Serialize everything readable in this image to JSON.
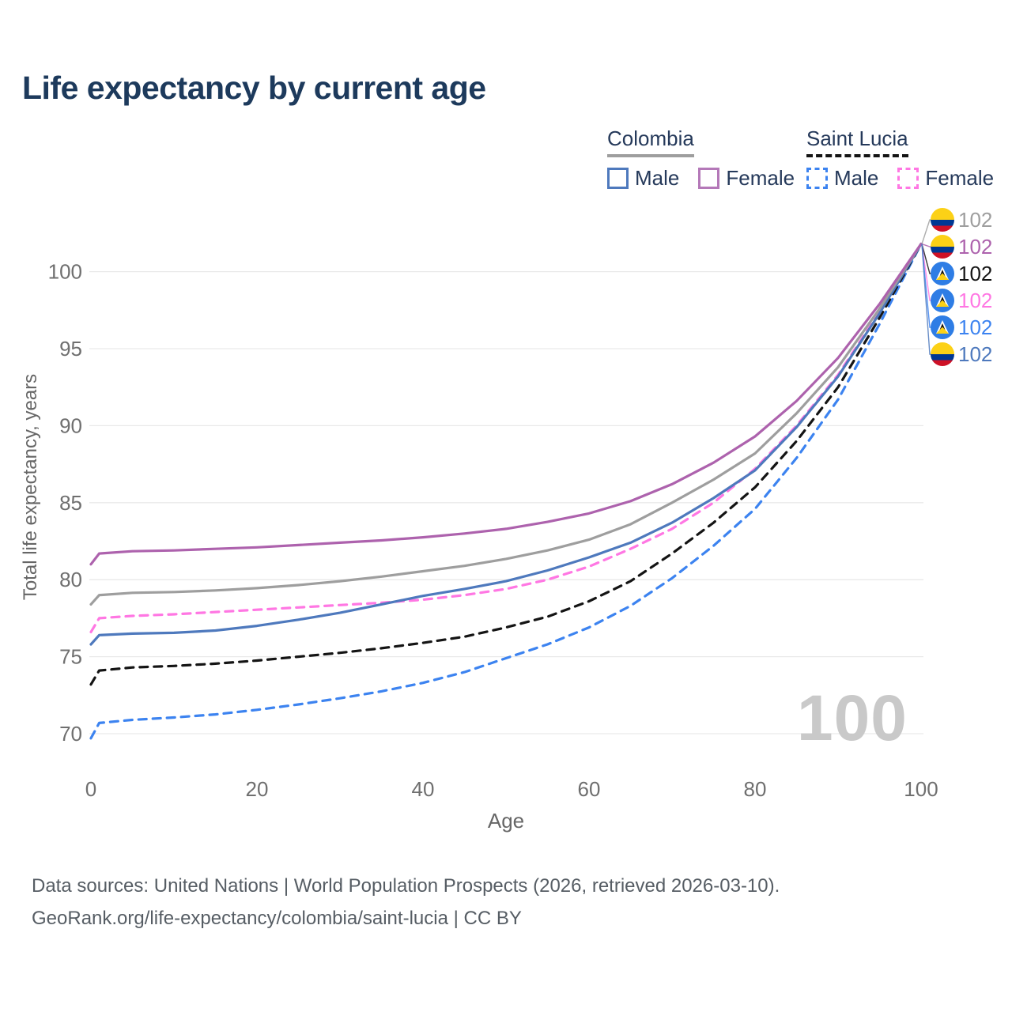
{
  "title": "Life expectancy by current age",
  "legend": {
    "groups": [
      {
        "country": "Colombia",
        "underline_style": "solid",
        "underline_color": "#9e9e9e",
        "items": [
          {
            "label": "Male",
            "color": "#4e79bd",
            "dash": "solid"
          },
          {
            "label": "Female",
            "color": "#b478b8",
            "dash": "solid"
          }
        ]
      },
      {
        "country": "Saint Lucia",
        "underline_style": "dashed",
        "underline_color": "#141414",
        "items": [
          {
            "label": "Male",
            "color": "#3c83f0",
            "dash": "dashed"
          },
          {
            "label": "Female",
            "color": "#ff77e3",
            "dash": "dashed"
          }
        ]
      }
    ]
  },
  "chart_data": {
    "type": "line",
    "title": "Life expectancy by current age",
    "xlabel": "Age",
    "ylabel": "Total life expectancy, years",
    "xlim": [
      0,
      100
    ],
    "ylim": [
      68,
      103
    ],
    "x_ticks": [
      0,
      20,
      40,
      60,
      80,
      100
    ],
    "y_ticks": [
      70,
      75,
      80,
      85,
      90,
      95,
      100
    ],
    "grid": "horizontal",
    "legend_position": "top-right",
    "ages": [
      0,
      1,
      5,
      10,
      15,
      20,
      25,
      30,
      35,
      40,
      45,
      50,
      55,
      60,
      65,
      70,
      75,
      80,
      85,
      90,
      95,
      100
    ],
    "series": [
      {
        "id": "colombia-all",
        "name": "Colombia",
        "flag": "colombia",
        "color": "#9e9e9e",
        "dash": "solid",
        "end_label": "102",
        "values": [
          78.4,
          79.0,
          79.15,
          79.2,
          79.3,
          79.45,
          79.65,
          79.9,
          80.2,
          80.55,
          80.9,
          81.35,
          81.9,
          82.6,
          83.6,
          85.0,
          86.5,
          88.2,
          90.8,
          93.8,
          97.6,
          101.8
        ]
      },
      {
        "id": "colombia-female",
        "name": "Colombia Female",
        "flag": "colombia",
        "color": "#ad62ad",
        "dash": "solid",
        "end_label": "102",
        "values": [
          81.0,
          81.7,
          81.85,
          81.9,
          82.0,
          82.1,
          82.25,
          82.4,
          82.55,
          82.75,
          83.0,
          83.3,
          83.75,
          84.3,
          85.1,
          86.2,
          87.6,
          89.3,
          91.6,
          94.4,
          97.9,
          101.8
        ]
      },
      {
        "id": "saint-lucia-all",
        "name": "Saint Lucia",
        "flag": "saint-lucia",
        "color": "#141414",
        "dash": "dashed",
        "end_label": "102",
        "values": [
          73.2,
          74.1,
          74.3,
          74.4,
          74.55,
          74.75,
          75.0,
          75.25,
          75.55,
          75.9,
          76.3,
          76.9,
          77.6,
          78.6,
          79.9,
          81.7,
          83.7,
          86.0,
          89.0,
          92.5,
          97.0,
          101.8
        ]
      },
      {
        "id": "saint-lucia-female",
        "name": "Saint Lucia Female",
        "flag": "saint-lucia",
        "color": "#ff77e3",
        "dash": "dashed",
        "end_label": "102",
        "values": [
          76.6,
          77.5,
          77.65,
          77.75,
          77.9,
          78.05,
          78.2,
          78.35,
          78.5,
          78.7,
          79.0,
          79.4,
          80.0,
          80.85,
          82.0,
          83.3,
          85.0,
          87.2,
          90.0,
          93.3,
          97.4,
          101.8
        ]
      },
      {
        "id": "saint-lucia-male",
        "name": "Saint Lucia Male",
        "flag": "saint-lucia",
        "color": "#3c83f0",
        "dash": "dashed",
        "end_label": "102",
        "values": [
          69.7,
          70.7,
          70.9,
          71.05,
          71.25,
          71.55,
          71.9,
          72.3,
          72.75,
          73.3,
          74.0,
          74.9,
          75.8,
          76.9,
          78.3,
          80.1,
          82.2,
          84.6,
          87.9,
          91.7,
          96.6,
          101.8
        ]
      },
      {
        "id": "colombia-male",
        "name": "Colombia Male",
        "flag": "colombia",
        "color": "#4e79bd",
        "dash": "solid",
        "end_label": "102",
        "values": [
          75.8,
          76.4,
          76.5,
          76.55,
          76.7,
          77.0,
          77.4,
          77.85,
          78.4,
          78.95,
          79.4,
          79.9,
          80.6,
          81.45,
          82.4,
          83.7,
          85.3,
          87.1,
          89.9,
          93.2,
          97.3,
          101.8
        ]
      }
    ],
    "flag_colors": {
      "colombia": {
        "yellow": "#FCD116",
        "blue": "#003893",
        "red": "#CE1126"
      },
      "saint_lucia": {
        "field": "#2e7de5",
        "white": "#ffffff",
        "black": "#111111",
        "yellow": "#FCD116"
      }
    }
  },
  "watermark": "100",
  "footer": {
    "line1": "Data sources: United Nations | World Population Prospects (2026, retrieved 2026-03-10).",
    "line2": "GeoRank.org/life-expectancy/colombia/saint-lucia | CC BY"
  }
}
